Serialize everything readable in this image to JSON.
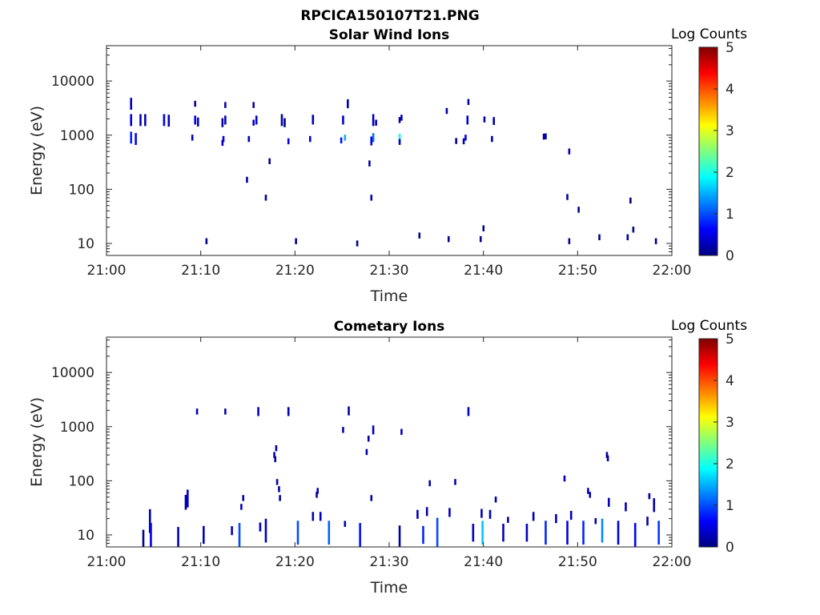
{
  "figure": {
    "title": "RPCICA150107T21.PNG"
  },
  "colormap": {
    "stops": [
      "#00007f",
      "#0000ff",
      "#007fff",
      "#00ffff",
      "#7fff7f",
      "#ffff00",
      "#ff7f00",
      "#ff0000",
      "#7f0000"
    ]
  },
  "chart_data": [
    {
      "type": "heatmap",
      "title": "Solar Wind Ions",
      "xlabel": "Time",
      "ylabel": "Energy (eV)",
      "colorbar_label": "Log Counts",
      "xticks": [
        "21:00",
        "21:10",
        "21:20",
        "21:30",
        "21:40",
        "21:50",
        "22:00"
      ],
      "yticks": [
        "10",
        "100",
        "1000",
        "10000"
      ],
      "xlim": [
        0,
        60
      ],
      "x_unit": "minutes after 21:00",
      "ylim": [
        6,
        45000
      ],
      "y_scale": "log",
      "clim": [
        0,
        5
      ],
      "cbar_ticks": [
        "0",
        "1",
        "2",
        "3",
        "4",
        "5"
      ],
      "cells": [
        [
          2.5,
          4,
          3800,
          0.3
        ],
        [
          2.5,
          4,
          1900,
          0.4
        ],
        [
          2.5,
          4,
          900,
          0.8
        ],
        [
          3.0,
          4,
          850,
          0.6
        ],
        [
          3.5,
          4,
          1900,
          0.3
        ],
        [
          4.0,
          4,
          1900,
          0.2
        ],
        [
          6.0,
          4,
          1900,
          0.5
        ],
        [
          6.5,
          4,
          1850,
          0.3
        ],
        [
          9.3,
          2,
          3800,
          0.2
        ],
        [
          9.3,
          3,
          1900,
          0.5
        ],
        [
          9.6,
          3,
          1750,
          0.3
        ],
        [
          9.0,
          2,
          900,
          0.3
        ],
        [
          10.5,
          2,
          11,
          0.1
        ],
        [
          12.5,
          2,
          3600,
          0.2
        ],
        [
          12.5,
          3,
          1900,
          0.3
        ],
        [
          12.2,
          3,
          1700,
          0.2
        ],
        [
          12.3,
          2,
          850,
          0.5
        ],
        [
          12.2,
          2,
          720,
          0.3
        ],
        [
          15.5,
          2,
          3600,
          0.2
        ],
        [
          15.8,
          3,
          1900,
          0.4
        ],
        [
          15.5,
          2,
          1700,
          0.3
        ],
        [
          15.0,
          2,
          850,
          0.3
        ],
        [
          14.8,
          2,
          150,
          0.1
        ],
        [
          17.2,
          2,
          330,
          0.1
        ],
        [
          16.8,
          2,
          70,
          0.1
        ],
        [
          18.5,
          4,
          1900,
          0.2
        ],
        [
          18.8,
          3,
          1700,
          0.1
        ],
        [
          20.0,
          2,
          11,
          0.1
        ],
        [
          21.8,
          3,
          1900,
          0.3
        ],
        [
          21.8,
          2,
          2100,
          0.2
        ],
        [
          21.5,
          2,
          850,
          0.4
        ],
        [
          19.2,
          2,
          770,
          0.5
        ],
        [
          25.5,
          3,
          3800,
          0.2
        ],
        [
          25.0,
          3,
          1900,
          0.4
        ],
        [
          25.2,
          2,
          900,
          1.5
        ],
        [
          24.8,
          2,
          800,
          0.7
        ],
        [
          26.5,
          2,
          10,
          0.1
        ],
        [
          27.8,
          2,
          300,
          0.2
        ],
        [
          28.0,
          2,
          70,
          0.3
        ],
        [
          28.2,
          4,
          1900,
          0.3
        ],
        [
          28.2,
          3,
          900,
          1.2
        ],
        [
          28.0,
          3,
          780,
          0.5
        ],
        [
          28.5,
          2,
          1700,
          0.2
        ],
        [
          31.0,
          2,
          1900,
          0.2
        ],
        [
          31.2,
          2,
          2100,
          0.3
        ],
        [
          31.0,
          3,
          880,
          2.0
        ],
        [
          31.0,
          2,
          750,
          0.4
        ],
        [
          33.1,
          2,
          14,
          0.1
        ],
        [
          36.0,
          2,
          2800,
          0.2
        ],
        [
          36.2,
          2,
          12,
          0.1
        ],
        [
          38.2,
          3,
          1900,
          0.4
        ],
        [
          38.3,
          2,
          4100,
          0.2
        ],
        [
          38.0,
          2,
          900,
          0.5
        ],
        [
          37.8,
          2,
          770,
          0.3
        ],
        [
          37.0,
          2,
          780,
          0.1
        ],
        [
          39.6,
          2,
          12,
          0.1
        ],
        [
          39.9,
          2,
          19,
          0.1
        ],
        [
          40.0,
          2,
          1950,
          0.2
        ],
        [
          41.0,
          2,
          1900,
          0.3
        ],
        [
          41.0,
          2,
          1750,
          0.2
        ],
        [
          40.8,
          2,
          850,
          0.2
        ],
        [
          46.5,
          2,
          950,
          0.2
        ],
        [
          46.3,
          2,
          940,
          0.2
        ],
        [
          49.0,
          2,
          500,
          0.2
        ],
        [
          48.8,
          2,
          72,
          0.2
        ],
        [
          50.0,
          2,
          42,
          0.1
        ],
        [
          49.0,
          2,
          11,
          0.1
        ],
        [
          52.2,
          2,
          13,
          0.1
        ],
        [
          55.2,
          2,
          13,
          0.1
        ],
        [
          55.8,
          2,
          18,
          0.1
        ],
        [
          55.5,
          2,
          62,
          0.1
        ],
        [
          58.2,
          2,
          11,
          0.1
        ]
      ]
    },
    {
      "type": "heatmap",
      "title": "Cometary Ions",
      "xlabel": "Time",
      "ylabel": "Energy (eV)",
      "colorbar_label": "Log Counts",
      "xticks": [
        "21:00",
        "21:10",
        "21:20",
        "21:30",
        "21:40",
        "21:50",
        "22:00"
      ],
      "yticks": [
        "10",
        "100",
        "1000",
        "10000"
      ],
      "xlim": [
        0,
        60
      ],
      "x_unit": "minutes after 21:00",
      "ylim": [
        6,
        45000
      ],
      "y_scale": "log",
      "clim": [
        0,
        5
      ],
      "cbar_ticks": [
        "0",
        "1",
        "2",
        "3",
        "4",
        "5"
      ],
      "cells": [
        [
          9.5,
          2,
          1900,
          0.3
        ],
        [
          12.5,
          2,
          1900,
          0.2
        ],
        [
          16.0,
          3,
          1900,
          0.3
        ],
        [
          19.2,
          3,
          1900,
          0.2
        ],
        [
          25.6,
          3,
          1950,
          0.2
        ],
        [
          38.3,
          3,
          1900,
          0.4
        ],
        [
          25.0,
          2,
          870,
          0.2
        ],
        [
          27.7,
          2,
          600,
          0.2
        ],
        [
          28.2,
          3,
          870,
          0.3
        ],
        [
          31.2,
          2,
          800,
          0.3
        ],
        [
          27.5,
          2,
          340,
          0.2
        ],
        [
          17.9,
          2,
          400,
          0.2
        ],
        [
          17.7,
          2,
          300,
          0.2
        ],
        [
          17.8,
          2,
          250,
          0.2
        ],
        [
          18.0,
          2,
          95,
          0.2
        ],
        [
          18.2,
          2,
          70,
          0.2
        ],
        [
          18.3,
          2,
          48,
          0.2
        ],
        [
          28.0,
          2,
          48,
          0.2
        ],
        [
          34.2,
          2,
          90,
          0.2
        ],
        [
          36.9,
          2,
          95,
          0.2
        ],
        [
          41.2,
          2,
          45,
          0.2
        ],
        [
          48.5,
          2,
          110,
          0.2
        ],
        [
          51.0,
          2,
          65,
          0.2
        ],
        [
          51.2,
          2,
          55,
          0.2
        ],
        [
          53.0,
          2,
          300,
          0.2
        ],
        [
          53.1,
          2,
          260,
          0.2
        ],
        [
          57.5,
          2,
          52,
          0.2
        ],
        [
          58.0,
          2,
          42,
          0.2
        ],
        [
          22.3,
          2,
          65,
          0.3
        ],
        [
          22.2,
          2,
          55,
          0.2
        ],
        [
          14.4,
          2,
          48,
          0.2
        ],
        [
          14.2,
          2,
          33,
          0.3
        ],
        [
          8.5,
          6,
          47,
          0.4
        ],
        [
          8.3,
          5,
          40,
          0.2
        ],
        [
          3.8,
          8,
          7.5,
          0.1
        ],
        [
          4.5,
          8,
          18,
          0.2
        ],
        [
          4.6,
          8,
          10,
          0.5
        ],
        [
          7.5,
          7,
          9,
          0.2
        ],
        [
          10.2,
          6,
          10,
          0.3
        ],
        [
          14.0,
          8,
          10,
          1.0
        ],
        [
          16.8,
          8,
          12,
          0.3
        ],
        [
          20.2,
          8,
          11,
          1.0
        ],
        [
          23.5,
          8,
          11,
          1.1
        ],
        [
          26.8,
          8,
          10,
          0.7
        ],
        [
          31.0,
          8,
          9,
          0.2
        ],
        [
          33.5,
          6,
          10,
          0.8
        ],
        [
          35.0,
          10,
          11,
          1.0
        ],
        [
          38.8,
          6,
          11,
          0.3
        ],
        [
          39.8,
          8,
          11,
          1.6
        ],
        [
          42.0,
          6,
          11,
          0.3
        ],
        [
          44.5,
          6,
          11,
          0.3
        ],
        [
          46.5,
          8,
          11,
          0.8
        ],
        [
          48.8,
          8,
          11,
          0.5
        ],
        [
          50.5,
          8,
          11,
          0.8
        ],
        [
          52.5,
          8,
          12,
          1.3
        ],
        [
          54.2,
          8,
          11,
          0.4
        ],
        [
          56.0,
          8,
          10,
          0.6
        ],
        [
          58.5,
          8,
          11,
          0.9
        ],
        [
          13.2,
          3,
          12,
          0.3
        ],
        [
          16.2,
          3,
          14,
          0.4
        ],
        [
          21.8,
          3,
          22,
          0.2
        ],
        [
          22.6,
          3,
          22,
          0.3
        ],
        [
          25.2,
          2,
          16,
          0.2
        ],
        [
          32.9,
          3,
          24,
          0.3
        ],
        [
          33.9,
          3,
          27,
          0.2
        ],
        [
          36.3,
          3,
          26,
          0.3
        ],
        [
          39.7,
          3,
          25,
          0.3
        ],
        [
          40.6,
          3,
          24,
          0.3
        ],
        [
          42.5,
          2,
          19,
          0.2
        ],
        [
          45.2,
          3,
          22,
          0.3
        ],
        [
          47.6,
          3,
          20,
          0.3
        ],
        [
          49.2,
          3,
          23,
          0.3
        ],
        [
          51.8,
          2,
          18,
          0.2
        ],
        [
          53.2,
          3,
          40,
          0.3
        ],
        [
          55.0,
          3,
          33,
          0.3
        ],
        [
          57.3,
          3,
          18,
          0.2
        ],
        [
          58.0,
          3,
          32,
          0.2
        ]
      ]
    }
  ]
}
